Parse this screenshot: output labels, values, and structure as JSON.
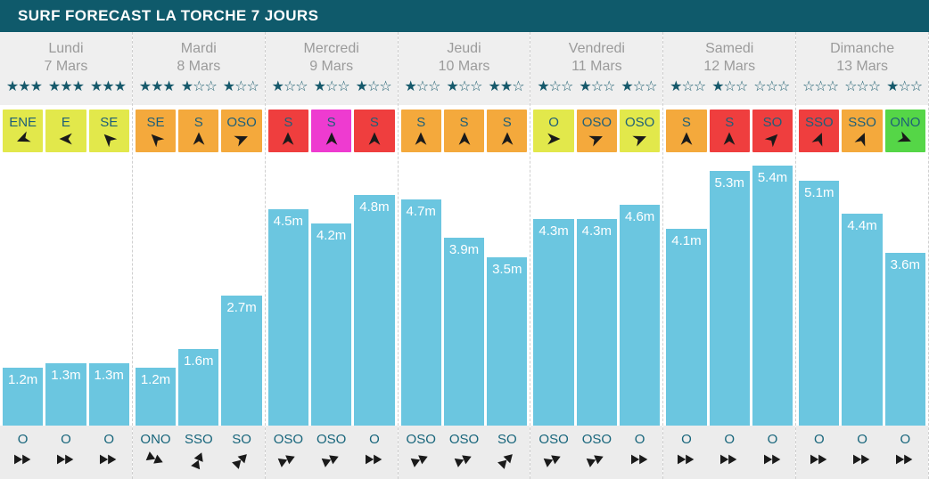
{
  "header": {
    "title": "SURF FORECAST LA TORCHE 7 JOURS"
  },
  "colors": {
    "header_bg": "#0F5A6B",
    "day_text": "#9B9B9B",
    "star": "#16596B",
    "bar": "#6BC6E0",
    "bar_label": "#FFFFFF",
    "wind_label": "#1E5F78",
    "swell_label": "#17657B",
    "wind_yellow": "#E2E84B",
    "wind_orange": "#F4A93C",
    "wind_red": "#EF3E3E",
    "wind_magenta": "#EE3BD0",
    "wind_green": "#55D647"
  },
  "days": [
    {
      "name": "Lundi",
      "date": "7 Mars",
      "stars": [
        3,
        3,
        3
      ],
      "wind": [
        {
          "dir": "ENE",
          "color": "#E2E84B",
          "angle": 247.5
        },
        {
          "dir": "E",
          "color": "#E2E84B",
          "angle": 270
        },
        {
          "dir": "SE",
          "color": "#E2E84B",
          "angle": 315
        }
      ],
      "waves": [
        {
          "label": "1.2m",
          "value": 1.2
        },
        {
          "label": "1.3m",
          "value": 1.3
        },
        {
          "label": "1.3m",
          "value": 1.3
        }
      ],
      "swell": [
        {
          "dir": "O",
          "angle": 90
        },
        {
          "dir": "O",
          "angle": 90
        },
        {
          "dir": "O",
          "angle": 90
        }
      ]
    },
    {
      "name": "Mardi",
      "date": "8 Mars",
      "stars": [
        3,
        1,
        1
      ],
      "wind": [
        {
          "dir": "SE",
          "color": "#F4A93C",
          "angle": 315
        },
        {
          "dir": "S",
          "color": "#F4A93C",
          "angle": 0
        },
        {
          "dir": "OSO",
          "color": "#F4A93C",
          "angle": 67.5
        }
      ],
      "waves": [
        {
          "label": "1.2m",
          "value": 1.2
        },
        {
          "label": "1.6m",
          "value": 1.6
        },
        {
          "label": "2.7m",
          "value": 2.7
        }
      ],
      "swell": [
        {
          "dir": "ONO",
          "angle": 112.5
        },
        {
          "dir": "SSO",
          "angle": 22.5
        },
        {
          "dir": "SO",
          "angle": 45
        }
      ]
    },
    {
      "name": "Mercredi",
      "date": "9 Mars",
      "stars": [
        1,
        1,
        1
      ],
      "wind": [
        {
          "dir": "S",
          "color": "#EF3E3E",
          "angle": 0
        },
        {
          "dir": "S",
          "color": "#EE3BD0",
          "angle": 0
        },
        {
          "dir": "S",
          "color": "#EF3E3E",
          "angle": 0
        }
      ],
      "waves": [
        {
          "label": "4.5m",
          "value": 4.5
        },
        {
          "label": "4.2m",
          "value": 4.2
        },
        {
          "label": "4.8m",
          "value": 4.8
        }
      ],
      "swell": [
        {
          "dir": "OSO",
          "angle": 67.5
        },
        {
          "dir": "OSO",
          "angle": 67.5
        },
        {
          "dir": "O",
          "angle": 90
        }
      ]
    },
    {
      "name": "Jeudi",
      "date": "10 Mars",
      "stars": [
        1,
        1,
        2
      ],
      "wind": [
        {
          "dir": "S",
          "color": "#F4A93C",
          "angle": 0
        },
        {
          "dir": "S",
          "color": "#F4A93C",
          "angle": 0
        },
        {
          "dir": "S",
          "color": "#F4A93C",
          "angle": 0
        }
      ],
      "waves": [
        {
          "label": "4.7m",
          "value": 4.7
        },
        {
          "label": "3.9m",
          "value": 3.9
        },
        {
          "label": "3.5m",
          "value": 3.5
        }
      ],
      "swell": [
        {
          "dir": "OSO",
          "angle": 67.5
        },
        {
          "dir": "OSO",
          "angle": 67.5
        },
        {
          "dir": "SO",
          "angle": 45
        }
      ]
    },
    {
      "name": "Vendredi",
      "date": "11 Mars",
      "stars": [
        1,
        1,
        1
      ],
      "wind": [
        {
          "dir": "O",
          "color": "#E2E84B",
          "angle": 90
        },
        {
          "dir": "OSO",
          "color": "#F4A93C",
          "angle": 67.5
        },
        {
          "dir": "OSO",
          "color": "#E2E84B",
          "angle": 67.5
        }
      ],
      "waves": [
        {
          "label": "4.3m",
          "value": 4.3
        },
        {
          "label": "4.3m",
          "value": 4.3
        },
        {
          "label": "4.6m",
          "value": 4.6
        }
      ],
      "swell": [
        {
          "dir": "OSO",
          "angle": 67.5
        },
        {
          "dir": "OSO",
          "angle": 67.5
        },
        {
          "dir": "O",
          "angle": 90
        }
      ]
    },
    {
      "name": "Samedi",
      "date": "12 Mars",
      "stars": [
        1,
        1,
        0
      ],
      "wind": [
        {
          "dir": "S",
          "color": "#F4A93C",
          "angle": 0
        },
        {
          "dir": "S",
          "color": "#EF3E3E",
          "angle": 0
        },
        {
          "dir": "SO",
          "color": "#EF3E3E",
          "angle": 45
        }
      ],
      "waves": [
        {
          "label": "4.1m",
          "value": 4.1
        },
        {
          "label": "5.3m",
          "value": 5.3
        },
        {
          "label": "5.4m",
          "value": 5.4
        }
      ],
      "swell": [
        {
          "dir": "O",
          "angle": 90
        },
        {
          "dir": "O",
          "angle": 90
        },
        {
          "dir": "O",
          "angle": 90
        }
      ]
    },
    {
      "name": "Dimanche",
      "date": "13 Mars",
      "stars": [
        0,
        0,
        1
      ],
      "wind": [
        {
          "dir": "SSO",
          "color": "#EF3E3E",
          "angle": 22.5
        },
        {
          "dir": "SSO",
          "color": "#F4A93C",
          "angle": 22.5
        },
        {
          "dir": "ONO",
          "color": "#55D647",
          "angle": 112.5
        }
      ],
      "waves": [
        {
          "label": "5.1m",
          "value": 5.1
        },
        {
          "label": "4.4m",
          "value": 4.4
        },
        {
          "label": "3.6m",
          "value": 3.6
        }
      ],
      "swell": [
        {
          "dir": "O",
          "angle": 90
        },
        {
          "dir": "O",
          "angle": 90
        },
        {
          "dir": "O",
          "angle": 90
        }
      ]
    }
  ],
  "chart_data": {
    "type": "bar",
    "title": "SURF FORECAST LA TORCHE 7 JOURS",
    "xlabel": "",
    "ylabel": "",
    "categories": [
      "Lundi 7 Mars",
      "Mardi 8 Mars",
      "Mercredi 9 Mars",
      "Jeudi 10 Mars",
      "Vendredi 11 Mars",
      "Samedi 12 Mars",
      "Dimanche 13 Mars"
    ],
    "bars_per_category": 3,
    "values_m": [
      [
        1.2,
        1.3,
        1.3
      ],
      [
        1.2,
        1.6,
        2.7
      ],
      [
        4.5,
        4.2,
        4.8
      ],
      [
        4.7,
        3.9,
        3.5
      ],
      [
        4.3,
        4.3,
        4.6
      ],
      [
        4.1,
        5.3,
        5.4
      ],
      [
        5.1,
        4.4,
        3.6
      ]
    ],
    "star_ratings_per_session": [
      [
        3,
        3,
        3
      ],
      [
        3,
        1,
        1
      ],
      [
        1,
        1,
        1
      ],
      [
        1,
        1,
        2
      ],
      [
        1,
        1,
        1
      ],
      [
        1,
        1,
        0
      ],
      [
        0,
        0,
        1
      ]
    ],
    "ylim": [
      0,
      5.5
    ],
    "grid": false,
    "legend": "none",
    "bar_color": "#6BC6E0"
  }
}
